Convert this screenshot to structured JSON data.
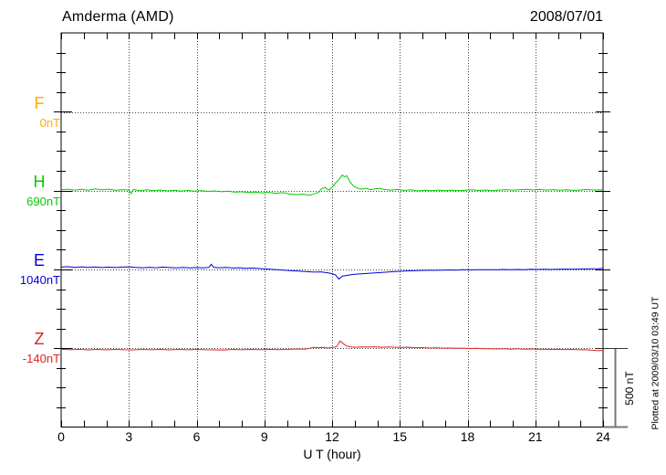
{
  "chart_data": {
    "type": "line",
    "title": "Amderma (AMD)",
    "date": "2008/07/01",
    "xlabel": "U T (hour)",
    "x_ticks": [
      0,
      3,
      6,
      9,
      12,
      15,
      18,
      21,
      24
    ],
    "x_range_hours": [
      0,
      24
    ],
    "grid": "dotted vertical lines every 3 hours; dotted horizontal line at each component baseline",
    "legend_position": "left margin, one colored label per component",
    "scale_bar": {
      "label": "500 nT",
      "value_nT": 500
    },
    "footnote": "Plotted at 2009/03/10 03:49 UT",
    "axis_color": "#000000",
    "grid_color": "#404040",
    "series": [
      {
        "name": "F",
        "baseline_label": "0nT",
        "baseline_nT": 0,
        "color": "#FFAA00",
        "points_format": "[hour, offset_nT_from_baseline]",
        "points": []
      },
      {
        "name": "H",
        "baseline_label": "690nT",
        "baseline_nT": 690,
        "color": "#00CC00",
        "points_format": "[hour, offset_nT_from_baseline]",
        "points": [
          [
            0,
            6
          ],
          [
            0.3,
            10
          ],
          [
            0.6,
            4
          ],
          [
            0.9,
            9
          ],
          [
            1.2,
            3
          ],
          [
            1.5,
            12
          ],
          [
            1.8,
            6
          ],
          [
            2.1,
            10
          ],
          [
            2.4,
            3
          ],
          [
            2.7,
            7
          ],
          [
            3.0,
            4
          ],
          [
            3.1,
            -18
          ],
          [
            3.2,
            8
          ],
          [
            3.5,
            1
          ],
          [
            3.8,
            6
          ],
          [
            4.1,
            0
          ],
          [
            4.4,
            5
          ],
          [
            4.7,
            -1
          ],
          [
            5.0,
            3
          ],
          [
            5.3,
            -2
          ],
          [
            5.6,
            2
          ],
          [
            5.9,
            -3
          ],
          [
            6.2,
            1
          ],
          [
            6.5,
            -4
          ],
          [
            6.8,
            -1
          ],
          [
            7.1,
            -6
          ],
          [
            7.4,
            -3
          ],
          [
            7.7,
            -9
          ],
          [
            8.0,
            -6
          ],
          [
            8.3,
            -11
          ],
          [
            8.6,
            -8
          ],
          [
            8.9,
            -13
          ],
          [
            9.2,
            -10
          ],
          [
            9.5,
            -16
          ],
          [
            9.8,
            -12
          ],
          [
            10.1,
            -20
          ],
          [
            10.4,
            -25
          ],
          [
            10.7,
            -22
          ],
          [
            11.0,
            -28
          ],
          [
            11.2,
            -20
          ],
          [
            11.4,
            -10
          ],
          [
            11.55,
            15
          ],
          [
            11.7,
            20
          ],
          [
            11.85,
            4
          ],
          [
            12.0,
            22
          ],
          [
            12.15,
            48
          ],
          [
            12.3,
            70
          ],
          [
            12.45,
            100
          ],
          [
            12.55,
            88
          ],
          [
            12.65,
            95
          ],
          [
            12.8,
            55
          ],
          [
            12.95,
            30
          ],
          [
            13.1,
            18
          ],
          [
            13.3,
            10
          ],
          [
            13.5,
            16
          ],
          [
            13.7,
            7
          ],
          [
            13.9,
            12
          ],
          [
            14.1,
            16
          ],
          [
            14.3,
            8
          ],
          [
            14.6,
            4
          ],
          [
            14.9,
            8
          ],
          [
            15.2,
            2
          ],
          [
            15.5,
            6
          ],
          [
            15.8,
            -1
          ],
          [
            16.1,
            3
          ],
          [
            16.4,
            0
          ],
          [
            16.7,
            4
          ],
          [
            17.0,
            1
          ],
          [
            17.3,
            4
          ],
          [
            17.6,
            0
          ],
          [
            17.9,
            3
          ],
          [
            18.2,
            6
          ],
          [
            18.5,
            2
          ],
          [
            18.8,
            5
          ],
          [
            19.1,
            1
          ],
          [
            19.4,
            4
          ],
          [
            19.7,
            7
          ],
          [
            20.0,
            3
          ],
          [
            20.3,
            6
          ],
          [
            20.6,
            9
          ],
          [
            20.9,
            5
          ],
          [
            21.2,
            8
          ],
          [
            21.5,
            4
          ],
          [
            21.8,
            7
          ],
          [
            22.1,
            3
          ],
          [
            22.4,
            6
          ],
          [
            22.7,
            2
          ],
          [
            23.0,
            5
          ],
          [
            23.3,
            8
          ],
          [
            23.6,
            4
          ],
          [
            23.9,
            6
          ],
          [
            24,
            5
          ]
        ]
      },
      {
        "name": "E",
        "baseline_label": "1040nT",
        "baseline_nT": 1040,
        "color": "#0000DD",
        "points_format": "[hour, offset_nT_from_baseline]",
        "points": [
          [
            0,
            16
          ],
          [
            0.3,
            19
          ],
          [
            0.6,
            14
          ],
          [
            0.9,
            18
          ],
          [
            1.2,
            14
          ],
          [
            1.5,
            17
          ],
          [
            1.8,
            13
          ],
          [
            2.1,
            16
          ],
          [
            2.4,
            13
          ],
          [
            2.7,
            16
          ],
          [
            3.0,
            18
          ],
          [
            3.3,
            14
          ],
          [
            3.6,
            12
          ],
          [
            3.9,
            15
          ],
          [
            4.2,
            12
          ],
          [
            4.5,
            16
          ],
          [
            4.8,
            13
          ],
          [
            5.1,
            11
          ],
          [
            5.4,
            14
          ],
          [
            5.7,
            11
          ],
          [
            6.0,
            13
          ],
          [
            6.3,
            11
          ],
          [
            6.55,
            14
          ],
          [
            6.65,
            34
          ],
          [
            6.75,
            15
          ],
          [
            7.0,
            12
          ],
          [
            7.3,
            14
          ],
          [
            7.6,
            10
          ],
          [
            7.9,
            12
          ],
          [
            8.2,
            8
          ],
          [
            8.5,
            10
          ],
          [
            8.8,
            7
          ],
          [
            9.1,
            4
          ],
          [
            9.4,
            1
          ],
          [
            9.7,
            -2
          ],
          [
            10.0,
            -5
          ],
          [
            10.3,
            -8
          ],
          [
            10.6,
            -10
          ],
          [
            10.9,
            -13
          ],
          [
            11.2,
            -16
          ],
          [
            11.5,
            -14
          ],
          [
            11.8,
            -20
          ],
          [
            12.0,
            -26
          ],
          [
            12.15,
            -33
          ],
          [
            12.3,
            -60
          ],
          [
            12.45,
            -42
          ],
          [
            12.6,
            -38
          ],
          [
            12.8,
            -33
          ],
          [
            13.0,
            -30
          ],
          [
            13.3,
            -27
          ],
          [
            13.6,
            -24
          ],
          [
            13.9,
            -21
          ],
          [
            14.2,
            -18
          ],
          [
            14.5,
            -15
          ],
          [
            14.8,
            -12
          ],
          [
            15.1,
            -10
          ],
          [
            15.4,
            -8
          ],
          [
            15.7,
            -6
          ],
          [
            16.0,
            -5
          ],
          [
            16.3,
            -4
          ],
          [
            16.6,
            -4
          ],
          [
            16.9,
            -3
          ],
          [
            17.2,
            -2
          ],
          [
            17.5,
            -3
          ],
          [
            17.8,
            -1
          ],
          [
            18.1,
            -2
          ],
          [
            18.4,
            0
          ],
          [
            18.7,
            -1
          ],
          [
            19.0,
            -1
          ],
          [
            19.3,
            0
          ],
          [
            19.6,
            1
          ],
          [
            19.9,
            0
          ],
          [
            20.2,
            1
          ],
          [
            20.5,
            0
          ],
          [
            20.8,
            2
          ],
          [
            21.1,
            1
          ],
          [
            21.4,
            2
          ],
          [
            21.7,
            1
          ],
          [
            22.0,
            2
          ],
          [
            22.3,
            3
          ],
          [
            22.6,
            2
          ],
          [
            22.9,
            3
          ],
          [
            23.2,
            4
          ],
          [
            23.5,
            5
          ],
          [
            23.8,
            6
          ],
          [
            24,
            8
          ]
        ]
      },
      {
        "name": "Z",
        "baseline_label": "-140nT",
        "baseline_nT": -140,
        "color": "#E02222",
        "points_format": "[hour, offset_nT_from_baseline]",
        "points": [
          [
            0,
            -5
          ],
          [
            0.4,
            -8
          ],
          [
            0.8,
            -5
          ],
          [
            1.2,
            -9
          ],
          [
            1.6,
            -6
          ],
          [
            2.0,
            -9
          ],
          [
            2.4,
            -6
          ],
          [
            2.8,
            -8
          ],
          [
            3.2,
            -9
          ],
          [
            3.6,
            -6
          ],
          [
            4.0,
            -8
          ],
          [
            4.4,
            -6
          ],
          [
            4.8,
            -9
          ],
          [
            5.2,
            -6
          ],
          [
            5.6,
            -8
          ],
          [
            6.0,
            -6
          ],
          [
            6.4,
            -8
          ],
          [
            6.8,
            -9
          ],
          [
            7.2,
            -10
          ],
          [
            7.6,
            -6
          ],
          [
            8.0,
            -8
          ],
          [
            8.4,
            -6
          ],
          [
            8.8,
            -8
          ],
          [
            9.2,
            -5
          ],
          [
            9.6,
            -7
          ],
          [
            10.0,
            -6
          ],
          [
            10.4,
            -3
          ],
          [
            10.8,
            -4
          ],
          [
            11.0,
            1
          ],
          [
            11.2,
            8
          ],
          [
            11.4,
            4
          ],
          [
            11.6,
            7
          ],
          [
            11.8,
            3
          ],
          [
            12.0,
            6
          ],
          [
            12.2,
            11
          ],
          [
            12.35,
            48
          ],
          [
            12.5,
            30
          ],
          [
            12.65,
            15
          ],
          [
            12.8,
            10
          ],
          [
            13.0,
            8
          ],
          [
            13.3,
            10
          ],
          [
            13.6,
            9
          ],
          [
            13.9,
            11
          ],
          [
            14.2,
            8
          ],
          [
            14.5,
            10
          ],
          [
            14.8,
            8
          ],
          [
            15.1,
            7
          ],
          [
            15.4,
            8
          ],
          [
            15.7,
            5
          ],
          [
            16.0,
            6
          ],
          [
            16.3,
            3
          ],
          [
            16.6,
            4
          ],
          [
            16.9,
            2
          ],
          [
            17.2,
            3
          ],
          [
            17.5,
            1
          ],
          [
            17.8,
            2
          ],
          [
            18.1,
            0
          ],
          [
            18.4,
            1
          ],
          [
            18.7,
            -2
          ],
          [
            19.0,
            -1
          ],
          [
            19.3,
            -3
          ],
          [
            19.6,
            -2
          ],
          [
            19.9,
            -4
          ],
          [
            20.2,
            -2
          ],
          [
            20.5,
            -4
          ],
          [
            20.8,
            -3
          ],
          [
            21.1,
            -5
          ],
          [
            21.4,
            -4
          ],
          [
            21.7,
            -6
          ],
          [
            22.0,
            -5
          ],
          [
            22.3,
            -7
          ],
          [
            22.6,
            -6
          ],
          [
            22.9,
            -8
          ],
          [
            23.2,
            -7
          ],
          [
            23.5,
            -11
          ],
          [
            23.8,
            -14
          ],
          [
            24,
            -12
          ]
        ]
      }
    ]
  }
}
